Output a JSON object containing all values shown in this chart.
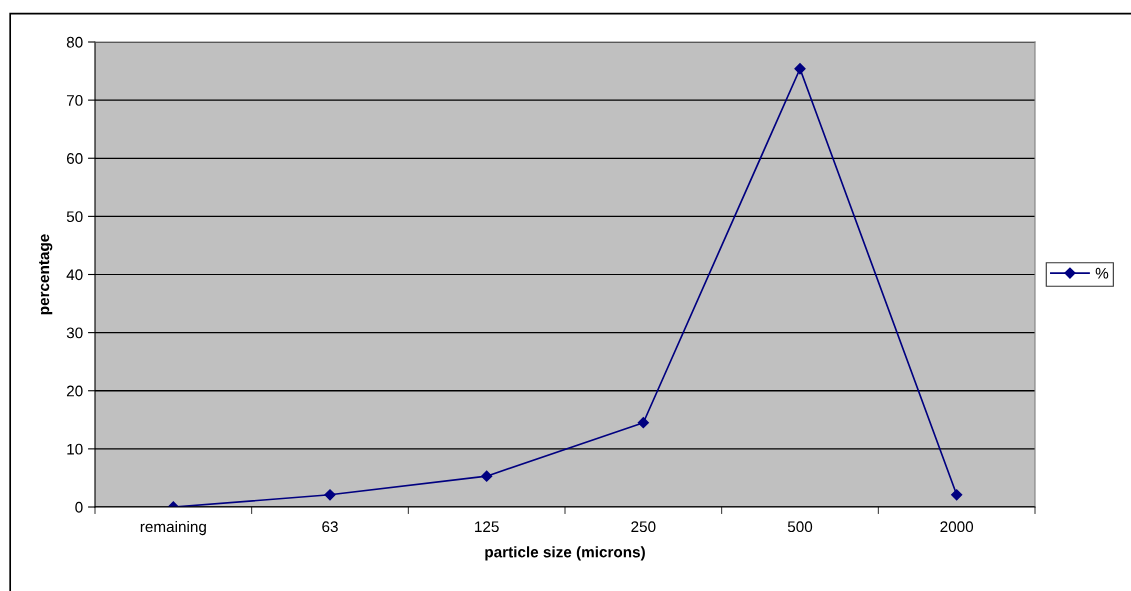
{
  "chart_data": {
    "type": "line",
    "xlabel": "particle size (microns)",
    "ylabel": "percentage",
    "categories": [
      "remaining",
      "63",
      "125",
      "250",
      "500",
      "2000"
    ],
    "series": [
      {
        "name": "%",
        "color": "#000080",
        "values": [
          0,
          2.1,
          5.3,
          14.5,
          75.4,
          2.1
        ]
      }
    ],
    "ylim": [
      0,
      80
    ],
    "yticks": [
      0,
      10,
      20,
      30,
      40,
      50,
      60,
      70,
      80
    ],
    "grid": "y",
    "legend": "right",
    "marker": "diamond",
    "line_style": "solid"
  }
}
